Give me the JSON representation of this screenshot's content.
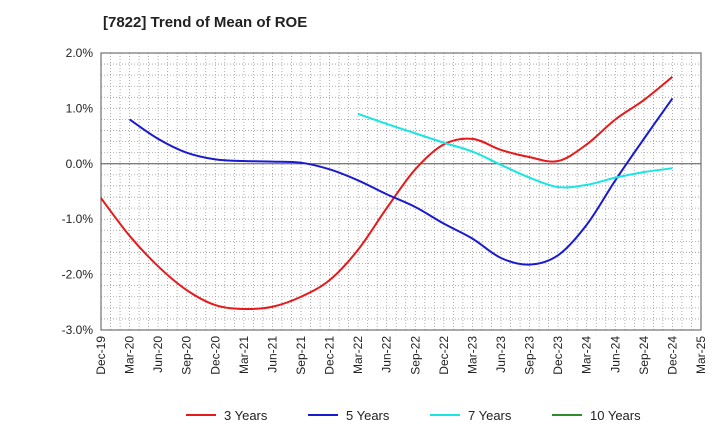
{
  "chart_data": {
    "type": "line",
    "title": "[7822]  Trend of Mean of ROE",
    "y_unit": "%",
    "ylim": [
      -3.0,
      2.0
    ],
    "y_ticks": [
      "2.0%",
      "1.0%",
      "0.0%",
      "-1.0%",
      "-2.0%",
      "-3.0%"
    ],
    "y_tick_values": [
      2.0,
      1.0,
      0.0,
      -1.0,
      -2.0,
      -3.0
    ],
    "x_ticks": [
      "Dec-19",
      "Mar-20",
      "Jun-20",
      "Sep-20",
      "Dec-20",
      "Mar-21",
      "Jun-21",
      "Sep-21",
      "Dec-21",
      "Mar-22",
      "Jun-22",
      "Sep-22",
      "Dec-22",
      "Mar-23",
      "Jun-23",
      "Sep-23",
      "Dec-23",
      "Mar-24",
      "Jun-24",
      "Sep-24",
      "Dec-24",
      "Mar-25"
    ],
    "grid": true,
    "legend_position": "bottom",
    "series": [
      {
        "name": "3 Years",
        "color": "#e41a1c",
        "x": [
          "Dec-19",
          "Mar-20",
          "Jun-20",
          "Sep-20",
          "Dec-20",
          "Mar-21",
          "Jun-21",
          "Sep-21",
          "Dec-21",
          "Mar-22",
          "Jun-22",
          "Sep-22",
          "Dec-22",
          "Mar-23",
          "Jun-23",
          "Sep-23",
          "Dec-23",
          "Mar-24",
          "Jun-24",
          "Sep-24",
          "Dec-24"
        ],
        "values": [
          -0.62,
          -1.3,
          -1.85,
          -2.28,
          -2.55,
          -2.62,
          -2.58,
          -2.4,
          -2.1,
          -1.55,
          -0.8,
          -0.1,
          0.35,
          0.45,
          0.25,
          0.12,
          0.05,
          0.35,
          0.8,
          1.15,
          1.57
        ]
      },
      {
        "name": "5 Years",
        "color": "#1a1acf",
        "x": [
          "Mar-20",
          "Jun-20",
          "Sep-20",
          "Dec-20",
          "Mar-21",
          "Jun-21",
          "Sep-21",
          "Dec-21",
          "Mar-22",
          "Jun-22",
          "Sep-22",
          "Dec-22",
          "Mar-23",
          "Jun-23",
          "Sep-23",
          "Dec-23",
          "Mar-24",
          "Jun-24",
          "Sep-24",
          "Dec-24"
        ],
        "values": [
          0.8,
          0.45,
          0.2,
          0.08,
          0.05,
          0.04,
          0.02,
          -0.1,
          -0.3,
          -0.55,
          -0.78,
          -1.08,
          -1.35,
          -1.7,
          -1.82,
          -1.65,
          -1.1,
          -0.3,
          0.45,
          1.18
        ]
      },
      {
        "name": "7 Years",
        "color": "#1ae5e5",
        "x": [
          "Mar-22",
          "Jun-22",
          "Sep-22",
          "Dec-22",
          "Mar-23",
          "Jun-23",
          "Sep-23",
          "Dec-23",
          "Mar-24",
          "Jun-24",
          "Sep-24",
          "Dec-24"
        ],
        "values": [
          0.9,
          0.72,
          0.55,
          0.38,
          0.22,
          -0.02,
          -0.25,
          -0.42,
          -0.38,
          -0.25,
          -0.15,
          -0.08
        ]
      },
      {
        "name": "10 Years",
        "color": "#2e8b2e",
        "x": [],
        "values": []
      }
    ]
  }
}
